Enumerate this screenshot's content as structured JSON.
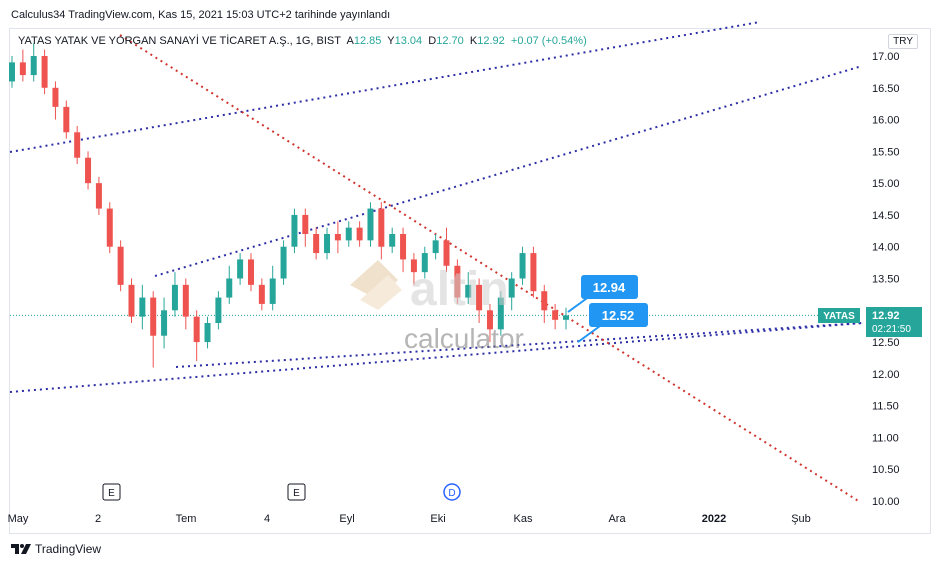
{
  "header": {
    "publication_line": "Calculus34 TradingView.com, Kas 15, 2021 15:03 UTC+2 tarihinde yayınlandı",
    "symbol_name": "YATAS YATAK VE YORGAN SANAYİ VE TİCARET A.Ş., 1G, BIST",
    "ohlc": [
      {
        "key": "A",
        "value": "12.85"
      },
      {
        "key": "Y",
        "value": "13.04"
      },
      {
        "key": "D",
        "value": "12.70"
      },
      {
        "key": "K",
        "value": "12.92"
      }
    ],
    "change": "+0.07 (+0.54%)",
    "currency": "TRY"
  },
  "price_tag": {
    "symbol": "YATAS",
    "price": "12.92",
    "countdown": "02:21:50"
  },
  "callouts": [
    "12.94",
    "12.52"
  ],
  "watermark": {
    "brand": "altin",
    "sub": "calculator"
  },
  "event_markers": [
    {
      "label": "E",
      "x_label_pos": "between-2-and-Tem"
    },
    {
      "label": "E",
      "x_label_pos": "between-4-and-Eyl"
    },
    {
      "label": "D",
      "x_label_pos": "Eki"
    }
  ],
  "footer": {
    "logo_text": "TradingView"
  },
  "colors": {
    "up": "#26a69a",
    "down": "#ef5350",
    "channel_line": "#2b2ea5",
    "resistance_line": "#d0342c",
    "callout": "#2196f3",
    "price_tag": "#26a69a"
  },
  "chart_data": {
    "type": "candlestick",
    "title": "",
    "x_tick_labels": [
      "May",
      "2",
      "Tem",
      "4",
      "Eyl",
      "Eki",
      "Kas",
      "Ara",
      "2022",
      "Şub"
    ],
    "y_tick_labels": [
      "17.00",
      "16.50",
      "16.00",
      "15.50",
      "15.00",
      "14.50",
      "14.00",
      "13.50",
      "13.00",
      "12.50",
      "12.00",
      "11.50",
      "11.00",
      "10.50",
      "10.00"
    ],
    "ylim": [
      10.0,
      17.0
    ],
    "last_price": 12.92,
    "candles_approx": [
      {
        "o": 16.6,
        "c": 16.9,
        "h": 17.0,
        "l": 16.5
      },
      {
        "o": 16.9,
        "c": 16.7,
        "h": 17.1,
        "l": 16.6
      },
      {
        "o": 16.7,
        "c": 17.0,
        "h": 17.2,
        "l": 16.6
      },
      {
        "o": 17.0,
        "c": 16.5,
        "h": 17.1,
        "l": 16.4
      },
      {
        "o": 16.5,
        "c": 16.2,
        "h": 16.6,
        "l": 16.0
      },
      {
        "o": 16.2,
        "c": 15.8,
        "h": 16.3,
        "l": 15.7
      },
      {
        "o": 15.8,
        "c": 15.4,
        "h": 15.9,
        "l": 15.3
      },
      {
        "o": 15.4,
        "c": 15.0,
        "h": 15.5,
        "l": 14.9
      },
      {
        "o": 15.0,
        "c": 14.6,
        "h": 15.1,
        "l": 14.5
      },
      {
        "o": 14.6,
        "c": 14.0,
        "h": 14.7,
        "l": 13.9
      },
      {
        "o": 14.0,
        "c": 13.4,
        "h": 14.1,
        "l": 13.3
      },
      {
        "o": 13.4,
        "c": 12.9,
        "h": 13.5,
        "l": 12.8
      },
      {
        "o": 12.9,
        "c": 13.2,
        "h": 13.4,
        "l": 12.7
      },
      {
        "o": 13.2,
        "c": 12.6,
        "h": 13.3,
        "l": 12.1
      },
      {
        "o": 12.6,
        "c": 13.0,
        "h": 13.2,
        "l": 12.4
      },
      {
        "o": 13.0,
        "c": 13.4,
        "h": 13.6,
        "l": 12.9
      },
      {
        "o": 13.4,
        "c": 12.9,
        "h": 13.5,
        "l": 12.7
      },
      {
        "o": 12.9,
        "c": 12.5,
        "h": 13.0,
        "l": 12.2
      },
      {
        "o": 12.5,
        "c": 12.8,
        "h": 12.9,
        "l": 12.4
      },
      {
        "o": 12.8,
        "c": 13.2,
        "h": 13.3,
        "l": 12.7
      },
      {
        "o": 13.2,
        "c": 13.5,
        "h": 13.7,
        "l": 13.1
      },
      {
        "o": 13.5,
        "c": 13.8,
        "h": 13.9,
        "l": 13.4
      },
      {
        "o": 13.8,
        "c": 13.4,
        "h": 13.9,
        "l": 13.3
      },
      {
        "o": 13.4,
        "c": 13.1,
        "h": 13.5,
        "l": 13.0
      },
      {
        "o": 13.1,
        "c": 13.5,
        "h": 13.7,
        "l": 13.0
      },
      {
        "o": 13.5,
        "c": 14.0,
        "h": 14.1,
        "l": 13.4
      },
      {
        "o": 14.0,
        "c": 14.5,
        "h": 14.6,
        "l": 13.9
      },
      {
        "o": 14.5,
        "c": 14.2,
        "h": 14.6,
        "l": 14.0
      },
      {
        "o": 14.2,
        "c": 13.9,
        "h": 14.3,
        "l": 13.8
      },
      {
        "o": 13.9,
        "c": 14.2,
        "h": 14.3,
        "l": 13.8
      },
      {
        "o": 14.2,
        "c": 14.1,
        "h": 14.4,
        "l": 13.9
      },
      {
        "o": 14.1,
        "c": 14.3,
        "h": 14.4,
        "l": 14.0
      },
      {
        "o": 14.3,
        "c": 14.1,
        "h": 14.4,
        "l": 14.0
      },
      {
        "o": 14.1,
        "c": 14.6,
        "h": 14.7,
        "l": 14.0
      },
      {
        "o": 14.6,
        "c": 14.0,
        "h": 14.7,
        "l": 13.8
      },
      {
        "o": 14.0,
        "c": 14.2,
        "h": 14.3,
        "l": 13.9
      },
      {
        "o": 14.2,
        "c": 13.8,
        "h": 14.3,
        "l": 13.6
      },
      {
        "o": 13.8,
        "c": 13.6,
        "h": 13.9,
        "l": 13.4
      },
      {
        "o": 13.6,
        "c": 13.9,
        "h": 14.0,
        "l": 13.5
      },
      {
        "o": 13.9,
        "c": 14.1,
        "h": 14.2,
        "l": 13.8
      },
      {
        "o": 14.1,
        "c": 13.7,
        "h": 14.3,
        "l": 13.6
      },
      {
        "o": 13.7,
        "c": 13.2,
        "h": 13.8,
        "l": 13.1
      },
      {
        "o": 13.2,
        "c": 13.4,
        "h": 13.6,
        "l": 13.1
      },
      {
        "o": 13.4,
        "c": 13.0,
        "h": 13.5,
        "l": 12.8
      },
      {
        "o": 13.0,
        "c": 12.7,
        "h": 13.1,
        "l": 12.5
      },
      {
        "o": 12.7,
        "c": 13.2,
        "h": 13.3,
        "l": 12.6
      },
      {
        "o": 13.2,
        "c": 13.5,
        "h": 13.6,
        "l": 13.0
      },
      {
        "o": 13.5,
        "c": 13.9,
        "h": 14.0,
        "l": 13.4
      },
      {
        "o": 13.9,
        "c": 13.3,
        "h": 14.0,
        "l": 13.2
      },
      {
        "o": 13.3,
        "c": 13.0,
        "h": 13.4,
        "l": 12.8
      },
      {
        "o": 13.0,
        "c": 12.85,
        "h": 13.1,
        "l": 12.7
      },
      {
        "o": 12.85,
        "c": 12.92,
        "h": 13.04,
        "l": 12.7
      }
    ]
  }
}
